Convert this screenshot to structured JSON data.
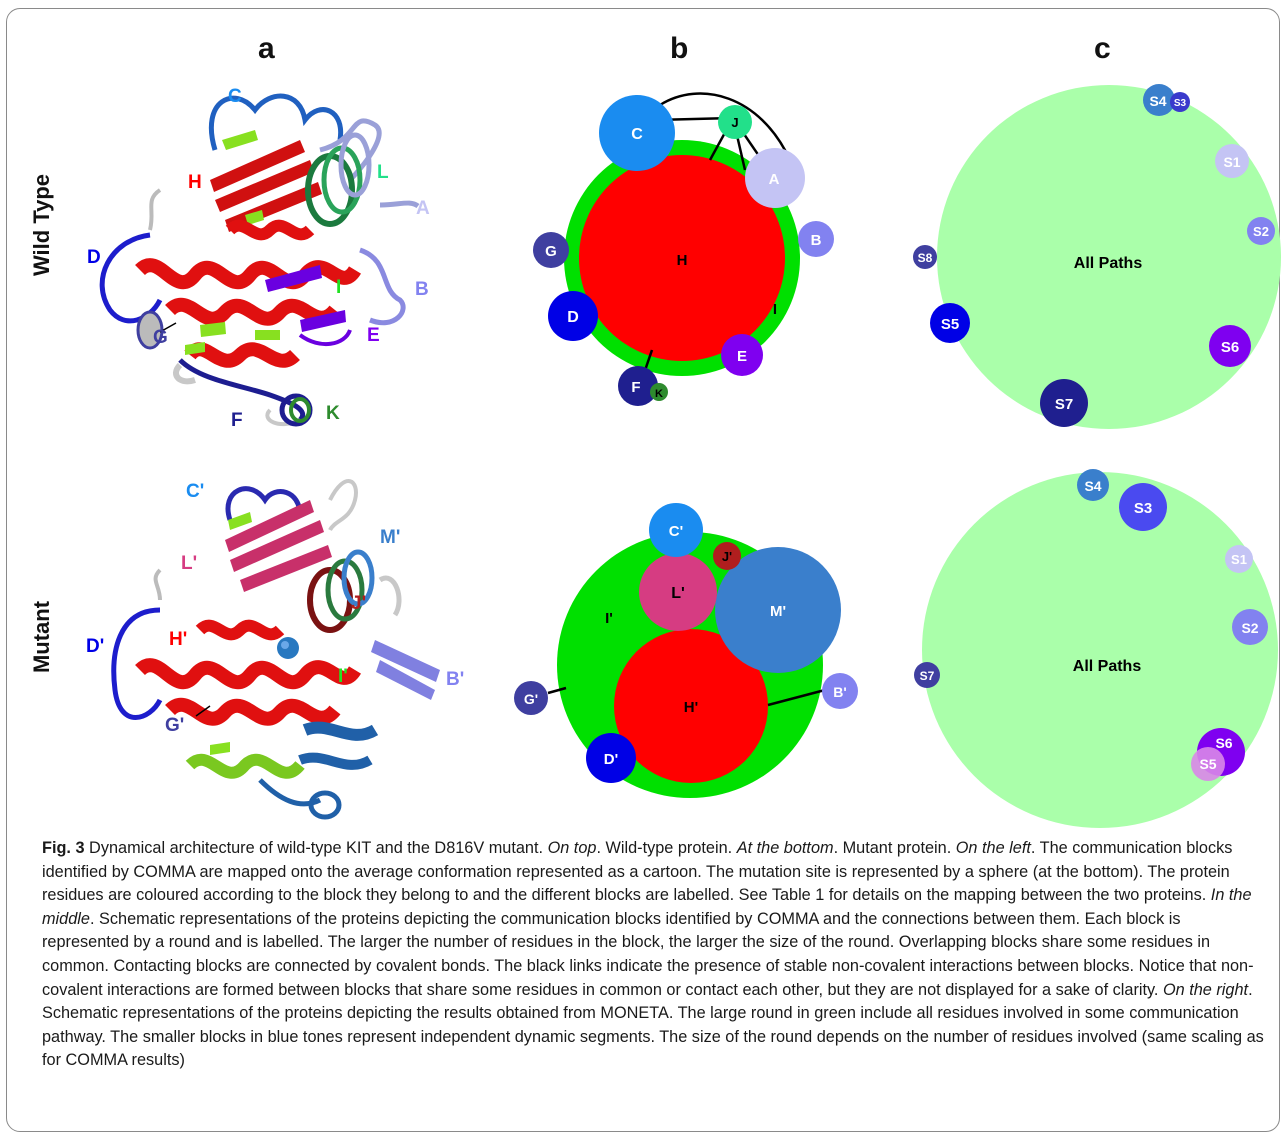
{
  "panels": {
    "a": "a",
    "b": "b",
    "c": "c"
  },
  "rows": {
    "top": "Wild Type",
    "bottom": "Mutant"
  },
  "structure_labels": {
    "wild_type": [
      "C",
      "H",
      "L",
      "A",
      "D",
      "B",
      "I",
      "G",
      "E",
      "F",
      "K"
    ],
    "mutant": [
      "C'",
      "M'",
      "L'",
      "D'",
      "H'",
      "J'",
      "B'",
      "I'",
      "G'"
    ]
  },
  "comma_wild_type": {
    "blocks": [
      "H",
      "C",
      "J",
      "A",
      "G",
      "B",
      "D",
      "E",
      "F",
      "K",
      "I"
    ]
  },
  "comma_mutant": {
    "blocks": [
      "C'",
      "J'",
      "L'",
      "M'",
      "I'",
      "H'",
      "G'",
      "B'",
      "D'"
    ]
  },
  "moneta_wild_type": {
    "main": "All Paths",
    "segments": [
      "S4",
      "S3",
      "S1",
      "S2",
      "S8",
      "S5",
      "S6",
      "S7"
    ]
  },
  "moneta_mutant": {
    "main": "All Paths",
    "segments": [
      "S4",
      "S3",
      "S1",
      "S2",
      "S7",
      "S6",
      "S5"
    ]
  },
  "caption": {
    "lead": "Fig. 3",
    "p1": " Dynamical architecture of wild-type KIT and the D816V mutant. ",
    "i1": "On top",
    "p2": ". Wild-type protein. ",
    "i2": "At the bottom",
    "p3": ". Mutant protein. ",
    "i3": "On the left",
    "p4": ". The communication blocks identified by COMMA are mapped onto the average conformation represented as a cartoon. The mutation site is represented by a sphere (at the bottom). The protein residues are coloured according to the block they belong to and the different blocks are labelled. See Table 1 for details on the mapping between the two proteins. ",
    "i4": "In the middle",
    "p5": ". Schematic representations of the proteins depicting the communication blocks identified by COMMA and the connections between them. Each block is represented by a round and is labelled. The larger the number of residues in the block, the larger the size of the round. Overlapping blocks share some residues in common. Contacting blocks are connected by covalent bonds. The black links indicate the presence of stable non-covalent interactions between blocks. Notice that non-covalent interactions are formed between blocks that share some residues in common or contact each other, but they are not displayed for a sake of clarity. ",
    "i5": "On the right",
    "p6": ". Schematic representations of the proteins depicting the results obtained from MONETA. The large round in green include all residues involved in some communication pathway. The smaller blocks in blue tones represent independent dynamic segments. The size of the round depends on the number of residues involved (same scaling as for COMMA results)"
  },
  "colors": {
    "block_H": "#ff0000",
    "block_I": "#00e000",
    "block_C": "#1a8cf0",
    "block_J": "#22e08a",
    "block_A": "#c4c4f4",
    "block_G": "#3f3fa0",
    "block_B": "#8282f0",
    "block_D": "#0000e6",
    "block_E": "#7f00f0",
    "block_F": "#1f1f8f",
    "block_K": "#2e8b2e",
    "block_L_mut": "#d63c82",
    "block_M_mut": "#3a7fcc",
    "block_J_mut": "#b01e1e",
    "moneta_bg": "#aaffaa",
    "protein_red": "#e01010",
    "protein_lime": "#88e020"
  }
}
